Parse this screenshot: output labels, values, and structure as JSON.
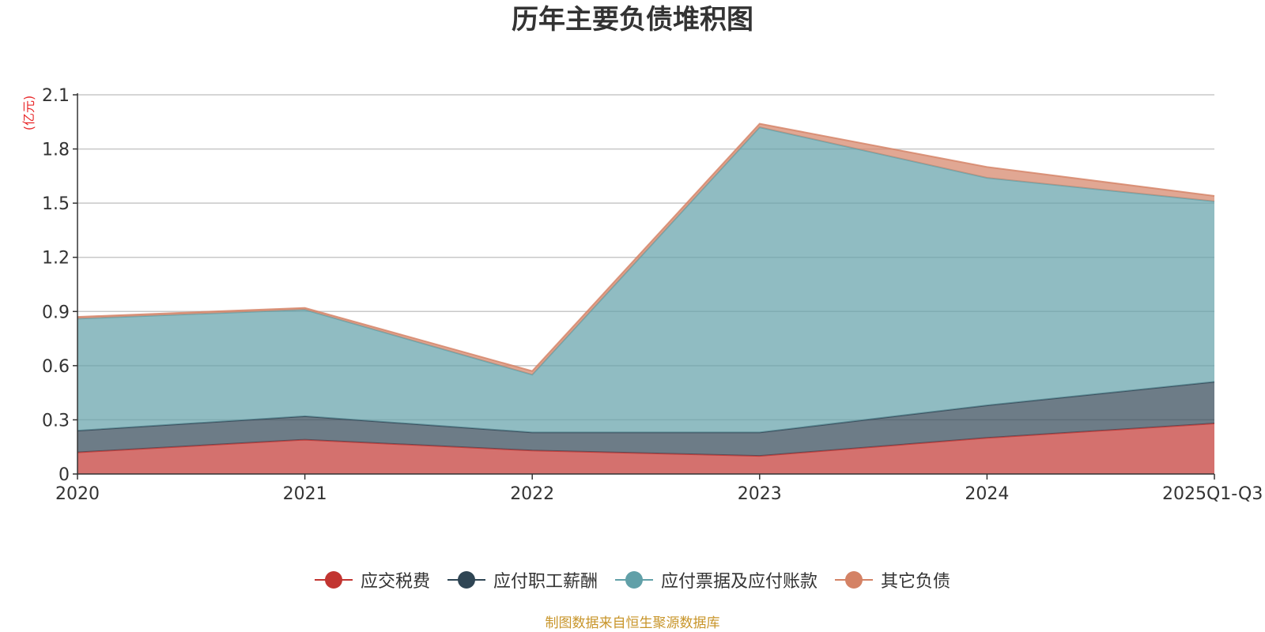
{
  "chart_data": {
    "type": "area",
    "stacked": true,
    "title": "历年主要负债堆积图",
    "unit_label": "(亿元)",
    "categories": [
      "2020",
      "2021",
      "2022",
      "2023",
      "2024",
      "2025Q1-Q3"
    ],
    "ylim": [
      0,
      2.1
    ],
    "yticks": [
      0,
      0.3,
      0.6,
      0.9,
      1.2,
      1.5,
      1.8,
      2.1
    ],
    "ytick_labels": [
      "0",
      "0.3",
      "0.6",
      "0.9",
      "1.2",
      "1.5",
      "1.8",
      "2.1"
    ],
    "grid": true,
    "legend_position": "bottom",
    "series": [
      {
        "name": "应交税费",
        "color": "#c23531",
        "values": [
          0.12,
          0.19,
          0.13,
          0.1,
          0.2,
          0.28
        ]
      },
      {
        "name": "应付职工薪酬",
        "color": "#2f4554",
        "values": [
          0.12,
          0.13,
          0.1,
          0.13,
          0.18,
          0.23
        ]
      },
      {
        "name": "应付票据及应付账款",
        "color": "#61a0a8",
        "values": [
          0.62,
          0.59,
          0.32,
          1.69,
          1.26,
          1.0
        ]
      },
      {
        "name": "其它负债",
        "color": "#d48265",
        "values": [
          0.01,
          0.01,
          0.02,
          0.02,
          0.06,
          0.03
        ]
      }
    ]
  },
  "source_note": "制图数据来自恒生聚源数据库"
}
